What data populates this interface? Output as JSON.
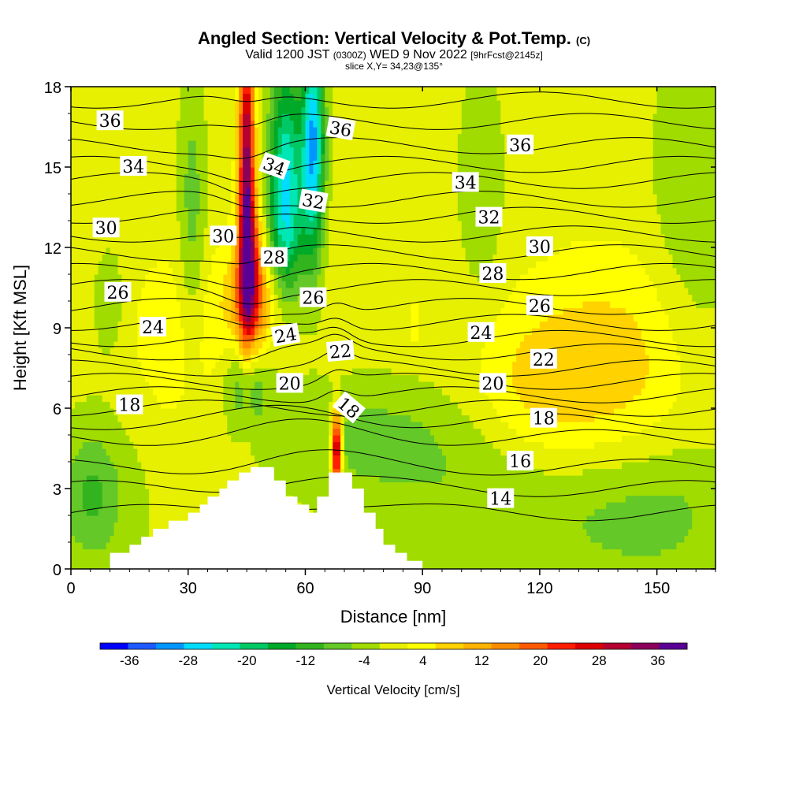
{
  "header": {
    "title": "Angled Section: Vertical Velocity & Pot.Temp.",
    "title_unit": "(C)",
    "subtitle_a": "Valid 1200 JST",
    "subtitle_b": "(0300Z)",
    "subtitle_c": "WED 9 Nov 2022",
    "subtitle_d": "[9hrFcst@2145z]",
    "slice": "slice X,Y= 34,23@135°"
  },
  "chart_data": {
    "type": "heatmap",
    "xlabel": "Distance [nm]",
    "ylabel": "Height [Kft MSL]",
    "xlim": [
      0,
      165
    ],
    "ylim": [
      0,
      18
    ],
    "x_ticks": [
      "0",
      "30",
      "60",
      "90",
      "120",
      "150"
    ],
    "y_ticks": [
      "0",
      "3",
      "6",
      "9",
      "12",
      "15",
      "18"
    ],
    "colorbar": {
      "label": "Vertical Velocity [cm/s]",
      "ticks": [
        "-36",
        "-28",
        "-20",
        "-12",
        "-4",
        "4",
        "12",
        "20",
        "28",
        "36"
      ],
      "levels": [
        -40,
        -36,
        -32,
        -28,
        -24,
        -20,
        -16,
        -12,
        -8,
        -4,
        0,
        4,
        8,
        12,
        16,
        20,
        24,
        28,
        32,
        36,
        40
      ],
      "colors": [
        "#0000ff",
        "#1e5aff",
        "#0096ff",
        "#00dcff",
        "#00e6b4",
        "#00c864",
        "#00aa28",
        "#32b41e",
        "#64c828",
        "#a0dc00",
        "#e6f000",
        "#ffff00",
        "#ffd200",
        "#ffb400",
        "#ff8c00",
        "#ff5a00",
        "#ff1e00",
        "#dc0000",
        "#b40032",
        "#8c005a",
        "#5a0096"
      ]
    },
    "terrain": [
      [
        0,
        0
      ],
      [
        10,
        0
      ],
      [
        10,
        0.6
      ],
      [
        15,
        0.6
      ],
      [
        15,
        0.9
      ],
      [
        18,
        0.9
      ],
      [
        18,
        1.2
      ],
      [
        21,
        1.2
      ],
      [
        21,
        1.5
      ],
      [
        25,
        1.5
      ],
      [
        25,
        1.8
      ],
      [
        30,
        1.8
      ],
      [
        30,
        2.1
      ],
      [
        33,
        2.1
      ],
      [
        33,
        2.4
      ],
      [
        35,
        2.4
      ],
      [
        35,
        2.7
      ],
      [
        38,
        2.7
      ],
      [
        38,
        3.0
      ],
      [
        40,
        3.0
      ],
      [
        40,
        3.3
      ],
      [
        43,
        3.3
      ],
      [
        43,
        3.6
      ],
      [
        46,
        3.6
      ],
      [
        46,
        3.8
      ],
      [
        52,
        3.8
      ],
      [
        52,
        3.3
      ],
      [
        55,
        3.3
      ],
      [
        55,
        2.7
      ],
      [
        58,
        2.7
      ],
      [
        58,
        2.4
      ],
      [
        61,
        2.4
      ],
      [
        61,
        2.1
      ],
      [
        63,
        2.1
      ],
      [
        63,
        2.7
      ],
      [
        66,
        2.7
      ],
      [
        66,
        3.6
      ],
      [
        72,
        3.6
      ],
      [
        72,
        3.0
      ],
      [
        75,
        3.0
      ],
      [
        75,
        2.1
      ],
      [
        78,
        2.1
      ],
      [
        78,
        1.5
      ],
      [
        80,
        1.5
      ],
      [
        80,
        0.9
      ],
      [
        83,
        0.9
      ],
      [
        83,
        0.6
      ],
      [
        86,
        0.6
      ],
      [
        86,
        0.3
      ],
      [
        90,
        0.3
      ],
      [
        90,
        0
      ],
      [
        165,
        0
      ]
    ],
    "field_blobs": [
      {
        "w": 2,
        "x": 80,
        "y": 9,
        "sx": 200,
        "sy": 30
      },
      {
        "w": 8,
        "x": 140,
        "y": 7.5,
        "sx": 18,
        "sy": 3
      },
      {
        "w": 6,
        "x": 120,
        "y": 6.5,
        "sx": 12,
        "sy": 2
      },
      {
        "w": 5,
        "x": 28,
        "y": 8.5,
        "sx": 10,
        "sy": 2.5
      },
      {
        "w": -7,
        "x": 5,
        "y": 2.8,
        "sx": 5,
        "sy": 1.5
      },
      {
        "w": -4,
        "x": 8,
        "y": 2.5,
        "sx": 10,
        "sy": 3
      },
      {
        "w": -6,
        "x": 115,
        "y": 2.5,
        "sx": 30,
        "sy": 2.5
      },
      {
        "w": -5,
        "x": 150,
        "y": 2,
        "sx": 15,
        "sy": 2
      },
      {
        "w": -6,
        "x": 75,
        "y": 5,
        "sx": 18,
        "sy": 1.5
      },
      {
        "w": -12,
        "x": 45,
        "y": 7,
        "sx": 4,
        "sy": 1.2
      },
      {
        "w": 36,
        "x": 45,
        "y": 15,
        "sx": 1.4,
        "sy": 4
      },
      {
        "w": 20,
        "x": 46,
        "y": 11,
        "sx": 2.5,
        "sy": 2
      },
      {
        "w": 10,
        "x": 47,
        "y": 10,
        "sx": 6,
        "sy": 1.5
      },
      {
        "w": -22,
        "x": 55,
        "y": 15,
        "sx": 3,
        "sy": 3
      },
      {
        "w": -30,
        "x": 62,
        "y": 16,
        "sx": 2,
        "sy": 3
      },
      {
        "w": -10,
        "x": 55,
        "y": 12.5,
        "sx": 4,
        "sy": 2
      },
      {
        "w": 40,
        "x": 68,
        "y": 4.5,
        "sx": 0.9,
        "sy": 1
      },
      {
        "w": -8,
        "x": 31,
        "y": 13,
        "sx": 2.5,
        "sy": 4
      },
      {
        "w": -6,
        "x": 160,
        "y": 13,
        "sx": 8,
        "sy": 5
      },
      {
        "w": -6,
        "x": 105,
        "y": 14.5,
        "sx": 4,
        "sy": 3
      },
      {
        "w": -5,
        "x": 10,
        "y": 10,
        "sx": 3,
        "sy": 1.5
      },
      {
        "w": 6,
        "x": 88,
        "y": 9.2,
        "sx": 1,
        "sy": 0.6
      }
    ],
    "theta_levels": [
      14,
      15,
      16,
      17,
      18,
      19,
      20,
      21,
      22,
      23,
      24,
      25,
      26,
      27,
      28,
      29,
      30,
      31,
      32,
      33,
      34,
      35,
      36,
      37
    ],
    "theta_base_heights": [
      2.1,
      3.0,
      3.8,
      4.9,
      5.5,
      6.0,
      6.5,
      7.0,
      7.5,
      8.1,
      8.6,
      9.2,
      9.8,
      10.5,
      11.1,
      11.8,
      12.5,
      13.2,
      13.8,
      14.5,
      15.1,
      15.8,
      16.7,
      17.5
    ],
    "contour_labels": [
      {
        "text": "36",
        "x": 10,
        "y": 16.7,
        "rot": 0
      },
      {
        "text": "34",
        "x": 16,
        "y": 15.0,
        "rot": 0
      },
      {
        "text": "30",
        "x": 9,
        "y": 12.7,
        "rot": 0
      },
      {
        "text": "26",
        "x": 12,
        "y": 10.3,
        "rot": 0
      },
      {
        "text": "24",
        "x": 21,
        "y": 9.0,
        "rot": 0
      },
      {
        "text": "18",
        "x": 15,
        "y": 6.1,
        "rot": 0
      },
      {
        "text": "30",
        "x": 39,
        "y": 12.4,
        "rot": 0
      },
      {
        "text": "34",
        "x": 52,
        "y": 15.0,
        "rot": 20
      },
      {
        "text": "28",
        "x": 52,
        "y": 11.6,
        "rot": 0
      },
      {
        "text": "32",
        "x": 62,
        "y": 13.7,
        "rot": 10
      },
      {
        "text": "36",
        "x": 69,
        "y": 16.4,
        "rot": 10
      },
      {
        "text": "26",
        "x": 62,
        "y": 10.1,
        "rot": 0
      },
      {
        "text": "24",
        "x": 55,
        "y": 8.7,
        "rot": -10
      },
      {
        "text": "22",
        "x": 69,
        "y": 8.1,
        "rot": -5
      },
      {
        "text": "20",
        "x": 56,
        "y": 6.9,
        "rot": 0
      },
      {
        "text": "18",
        "x": 71,
        "y": 6.0,
        "rot": 40
      },
      {
        "text": "36",
        "x": 115,
        "y": 15.8,
        "rot": 0
      },
      {
        "text": "34",
        "x": 101,
        "y": 14.4,
        "rot": 0
      },
      {
        "text": "32",
        "x": 107,
        "y": 13.1,
        "rot": 0
      },
      {
        "text": "30",
        "x": 120,
        "y": 12.0,
        "rot": 0
      },
      {
        "text": "28",
        "x": 108,
        "y": 11.0,
        "rot": 0
      },
      {
        "text": "26",
        "x": 120,
        "y": 9.8,
        "rot": 0
      },
      {
        "text": "24",
        "x": 105,
        "y": 8.8,
        "rot": 0
      },
      {
        "text": "22",
        "x": 121,
        "y": 7.8,
        "rot": 0
      },
      {
        "text": "20",
        "x": 108,
        "y": 6.9,
        "rot": 0
      },
      {
        "text": "18",
        "x": 121,
        "y": 5.6,
        "rot": 0
      },
      {
        "text": "16",
        "x": 115,
        "y": 4.0,
        "rot": 0
      },
      {
        "text": "14",
        "x": 110,
        "y": 2.6,
        "rot": 0
      }
    ]
  }
}
